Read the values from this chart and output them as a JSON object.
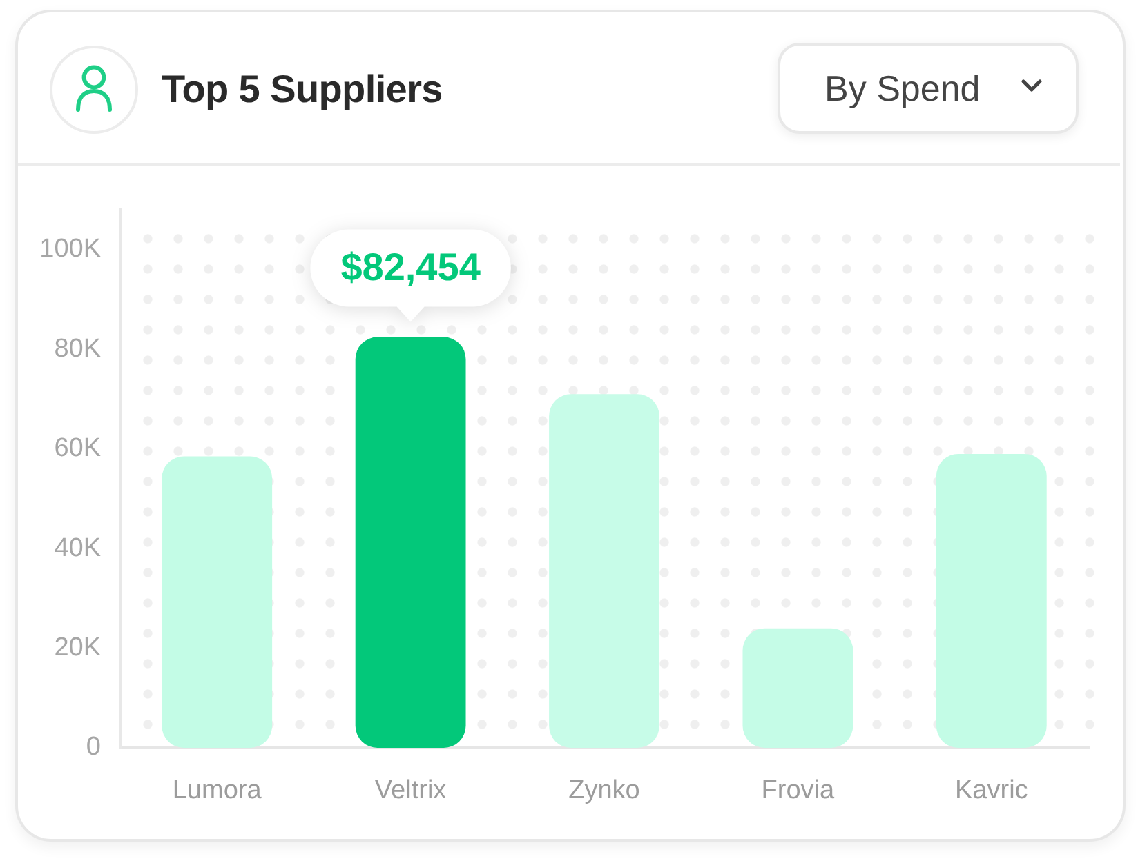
{
  "chart_data": {
    "type": "bar",
    "title": "Top 5 Suppliers",
    "annotations": [
      "By Spend"
    ],
    "categories": [
      "Lumora",
      "Veltrix",
      "Zynko",
      "Frovia",
      "Kavric"
    ],
    "values": [
      58500,
      82454,
      71000,
      24000,
      59000
    ],
    "colors": [
      "#c3fce6",
      "#03c87a",
      "#c7fce8",
      "#c5fce7",
      "#c3fce6"
    ],
    "value_labels": [
      null,
      "$82,454",
      null,
      null,
      null
    ],
    "ylim": [
      0,
      108000
    ],
    "yticks": [
      0,
      {
        "value": 20000,
        "label": "20K"
      },
      {
        "value": 40000,
        "label": "40K"
      },
      {
        "value": 60000,
        "label": "60K"
      },
      {
        "value": 80000,
        "label": "80K"
      },
      {
        "value": 100000,
        "label": "100K"
      }
    ]
  }
}
